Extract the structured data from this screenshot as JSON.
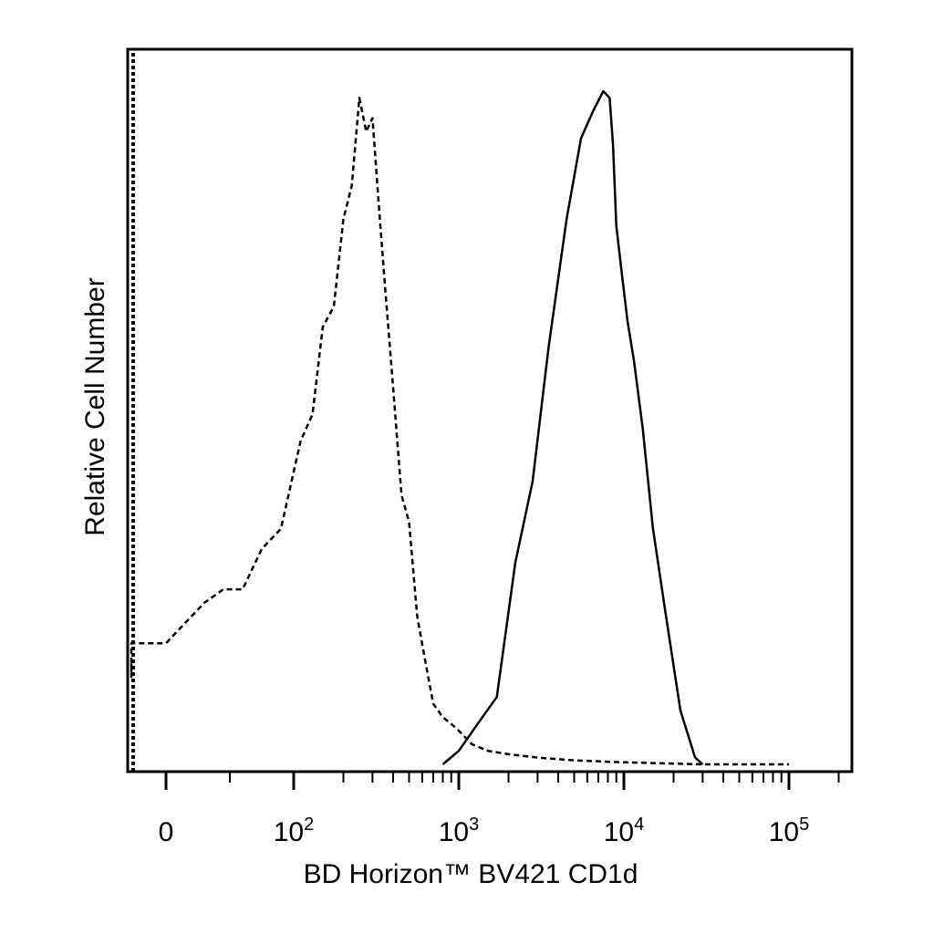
{
  "chart_data": {
    "type": "area",
    "title": "",
    "xlabel": "BD Horizon™ BV421 CD1d",
    "ylabel": "Relative Cell Number",
    "x_scale": "biexponential (log above 10^2)",
    "x_ticks": [
      {
        "value": 0,
        "label": "0"
      },
      {
        "value": 100,
        "base": "10",
        "exp": "2"
      },
      {
        "value": 1000,
        "base": "10",
        "exp": "3"
      },
      {
        "value": 10000,
        "base": "10",
        "exp": "4"
      },
      {
        "value": 100000,
        "base": "10",
        "exp": "5"
      }
    ],
    "xlim": [
      -200,
      250000
    ],
    "ylim": [
      0,
      100
    ],
    "grid": false,
    "legend": "none",
    "series": [
      {
        "style": "dashed",
        "color": "#000000",
        "x": [
          -200,
          -150,
          -100,
          -50,
          0,
          15,
          30,
          45,
          60,
          75,
          90,
          110,
          130,
          150,
          175,
          200,
          225,
          250,
          275,
          300,
          330,
          360,
          400,
          450,
          500,
          560,
          630,
          700,
          800,
          900,
          1000,
          1200,
          1500,
          2000,
          3000,
          5000,
          10000,
          30000,
          100000
        ],
        "y": [
          15,
          13,
          16,
          18,
          18,
          21,
          24,
          26,
          26,
          32,
          35,
          48,
          52,
          65,
          68,
          81,
          86,
          99,
          94,
          96,
          82,
          70,
          56,
          40,
          36,
          22,
          15,
          9,
          7,
          6,
          5,
          3,
          2,
          1.5,
          1,
          0.6,
          0.3,
          0,
          0
        ]
      },
      {
        "style": "solid",
        "color": "#000000",
        "x": [
          800,
          1000,
          1300,
          1700,
          2200,
          2800,
          3500,
          4500,
          5500,
          6500,
          7500,
          8200,
          8600,
          9000,
          9600,
          10500,
          11500,
          13000,
          15000,
          18000,
          22000,
          27000,
          30000
        ],
        "y": [
          0,
          2,
          6,
          10,
          30,
          42,
          62,
          81,
          93,
          97,
          100,
          99,
          92,
          80,
          74,
          66,
          60,
          50,
          35,
          22,
          8,
          1,
          0
        ]
      }
    ]
  }
}
